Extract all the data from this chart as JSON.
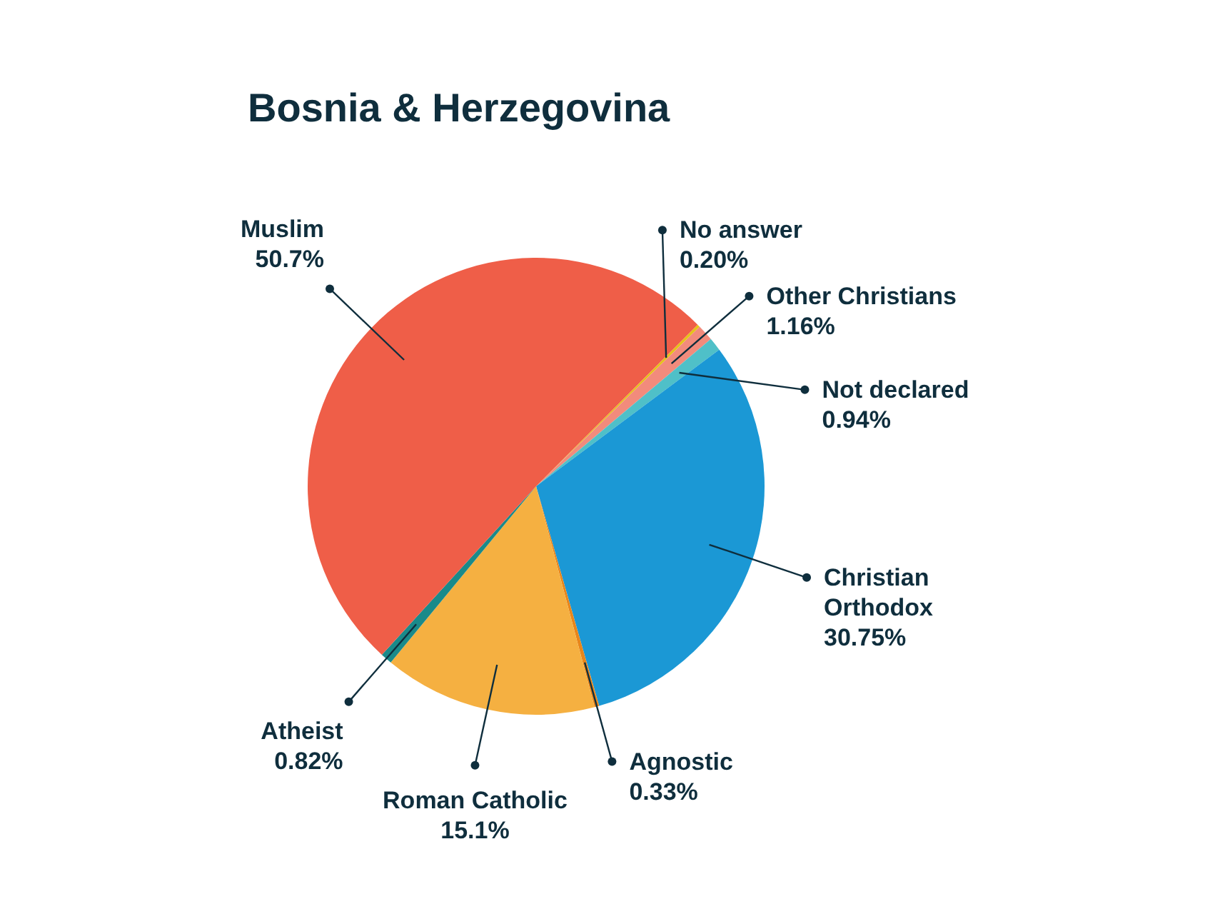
{
  "chart_data": {
    "type": "pie",
    "title": "Bosnia & Herzegovina",
    "categories": [
      "No answer",
      "Other Christians",
      "Not declared",
      "Christian Orthodox",
      "Agnostic",
      "Roman Catholic",
      "Atheist",
      "Muslim"
    ],
    "values": [
      0.2,
      1.16,
      0.94,
      30.75,
      0.33,
      15.1,
      0.82,
      50.7
    ],
    "value_labels": [
      "0.20%",
      "1.16%",
      "0.94%",
      "30.75%",
      "0.33%",
      "15.1%",
      "0.82%",
      "50.7%"
    ],
    "colors": [
      "#e6c21a",
      "#f28b7c",
      "#4fc0c8",
      "#1b98d5",
      "#e8861a",
      "#f5b041",
      "#1a8a8a",
      "#ef5e48"
    ]
  }
}
